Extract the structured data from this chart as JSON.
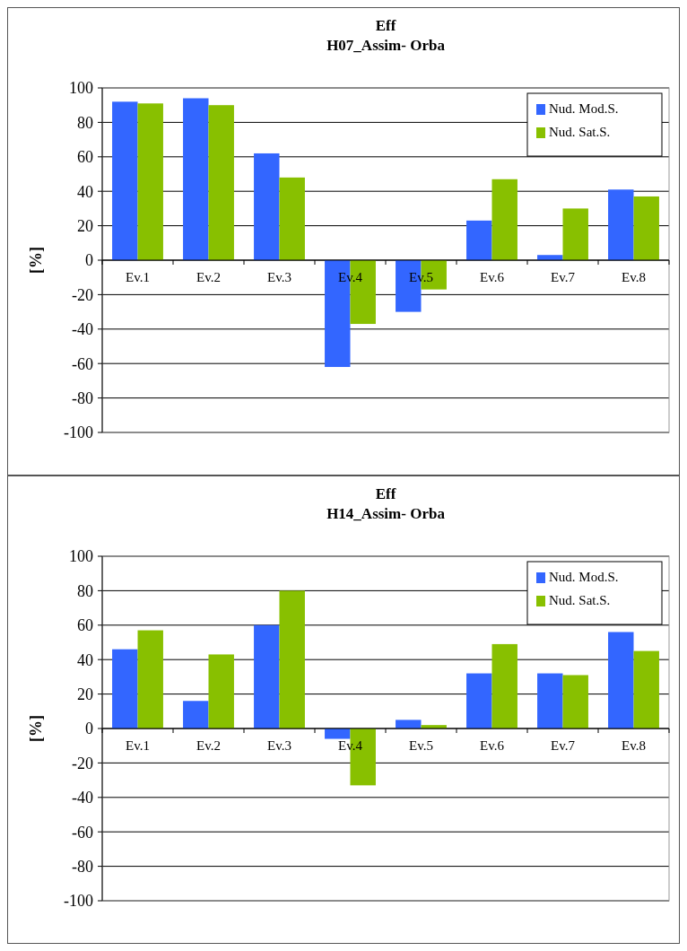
{
  "chart_data": [
    {
      "type": "bar",
      "title": "Eff",
      "subtitle": "H07_Assim- Orba",
      "ylabel": "[%]",
      "categories": [
        "Ev.1",
        "Ev.2",
        "Ev.3",
        "Ev.4",
        "Ev.5",
        "Ev.6",
        "Ev.7",
        "Ev.8"
      ],
      "series": [
        {
          "name": "Nud. Mod.S.",
          "color": "#3366ff",
          "values": [
            92,
            94,
            62,
            -62,
            -30,
            23,
            3,
            41
          ]
        },
        {
          "name": "Nud. Sat.S.",
          "color": "#88c000",
          "values": [
            91,
            90,
            48,
            -37,
            -17,
            47,
            30,
            37
          ]
        }
      ],
      "ylim": [
        -100,
        100
      ],
      "yticks": [
        -100,
        -80,
        -60,
        -40,
        -20,
        0,
        20,
        40,
        60,
        80,
        100
      ],
      "grid": "y",
      "legend": "top right"
    },
    {
      "type": "bar",
      "title": "Eff",
      "subtitle": "H14_Assim- Orba",
      "ylabel": "[%]",
      "categories": [
        "Ev.1",
        "Ev.2",
        "Ev.3",
        "Ev.4",
        "Ev.5",
        "Ev.6",
        "Ev.7",
        "Ev.8"
      ],
      "series": [
        {
          "name": "Nud. Mod.S.",
          "color": "#3366ff",
          "values": [
            46,
            16,
            60,
            -6,
            5,
            32,
            32,
            56
          ]
        },
        {
          "name": "Nud. Sat.S.",
          "color": "#88c000",
          "values": [
            57,
            43,
            80,
            -33,
            2,
            49,
            31,
            45
          ]
        }
      ],
      "ylim": [
        -100,
        100
      ],
      "yticks": [
        -100,
        -80,
        -60,
        -40,
        -20,
        0,
        20,
        40,
        60,
        80,
        100
      ],
      "grid": "y",
      "legend": "top right"
    }
  ]
}
